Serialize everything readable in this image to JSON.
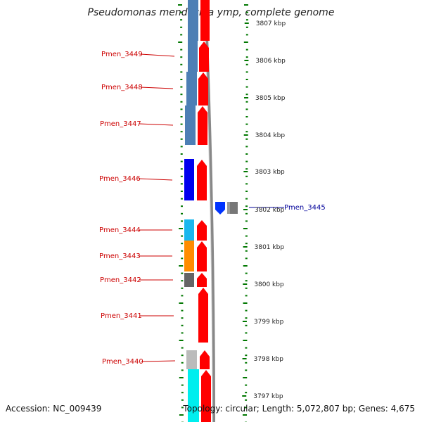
{
  "title": "Pseudomonas mendocina ymp, complete genome",
  "accession": "Accession: NC_009439",
  "topology": "Topology: circular; Length: 5,072,807 bp; Genes: 4,675",
  "colors": {
    "label_red": "#cc0000",
    "label_blue": "#000099",
    "ruler_green": "#007700",
    "arrow_red": "#ff0000",
    "backbone": "#888888"
  },
  "ticks": [
    "3807 kbp",
    "3806 kbp",
    "3805 kbp",
    "3804 kbp",
    "3803 kbp",
    "3802 kbp",
    "3801 kbp",
    "3800 kbp",
    "3799 kbp",
    "3798 kbp",
    "3797 kbp"
  ],
  "genes": [
    {
      "name": "Pmen_3449",
      "strand": "+",
      "color": "#ff0000",
      "class_color": "#4d7fb5"
    },
    {
      "name": "Pmen_3448",
      "strand": "+",
      "color": "#ff0000",
      "class_color": "#4d7fb5"
    },
    {
      "name": "Pmen_3447",
      "strand": "+",
      "color": "#ff0000",
      "class_color": "#4d7fb5"
    },
    {
      "name": "Pmen_3446",
      "strand": "+",
      "color": "#ff0000",
      "class_color": "#0000ee"
    },
    {
      "name": "Pmen_3445",
      "strand": "-",
      "color": "#0033ff",
      "class_color": "#777777"
    },
    {
      "name": "Pmen_3444",
      "strand": "+",
      "color": "#ff0000",
      "class_color": "#1ab7ee"
    },
    {
      "name": "Pmen_3443",
      "strand": "+",
      "color": "#ff0000",
      "class_color": "#ff8c00"
    },
    {
      "name": "Pmen_3442",
      "strand": "+",
      "color": "#ff0000",
      "class_color": "#666666"
    },
    {
      "name": "Pmen_3441",
      "strand": "+",
      "color": "#ff0000",
      "class_color": ""
    },
    {
      "name": "Pmen_3440",
      "strand": "+",
      "color": "#ff0000",
      "class_color": "#bbbbbb"
    }
  ]
}
